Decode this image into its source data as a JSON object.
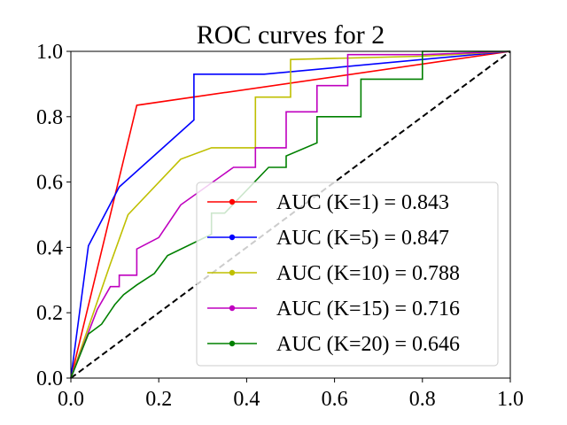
{
  "chart_data": {
    "type": "line",
    "title": "ROC curves for 2",
    "xlabel": "",
    "ylabel": "",
    "xlim": [
      0,
      1
    ],
    "ylim": [
      0,
      1
    ],
    "xticks": [
      "0.0",
      "0.2",
      "0.4",
      "0.6",
      "0.8",
      "1.0"
    ],
    "yticks": [
      "0.0",
      "0.2",
      "0.4",
      "0.6",
      "0.8",
      "1.0"
    ],
    "grid": false,
    "legend_position": "lower-right",
    "reference_line": {
      "x": [
        0,
        1
      ],
      "y": [
        0,
        1
      ],
      "color": "#000000",
      "style": "dashed"
    },
    "series": [
      {
        "name": "AUC (K=1) = 0.843",
        "color": "#ff0000",
        "x": [
          0.0,
          0.15,
          1.0
        ],
        "y": [
          0.0,
          0.835,
          1.0
        ]
      },
      {
        "name": "AUC (K=5) = 0.847",
        "color": "#0000ff",
        "x": [
          0.0,
          0.04,
          0.11,
          0.28,
          0.28,
          0.44,
          1.0
        ],
        "y": [
          0.0,
          0.405,
          0.585,
          0.79,
          0.93,
          0.93,
          1.0
        ]
      },
      {
        "name": "AUC (K=10) = 0.788",
        "color": "#bfbf00",
        "x": [
          0.0,
          0.09,
          0.13,
          0.25,
          0.32,
          0.42,
          0.42,
          0.5,
          0.5,
          0.8,
          1.0
        ],
        "y": [
          0.0,
          0.35,
          0.5,
          0.67,
          0.705,
          0.705,
          0.86,
          0.86,
          0.975,
          0.985,
          1.0
        ]
      },
      {
        "name": "AUC (K=15) = 0.716",
        "color": "#bf00bf",
        "x": [
          0.0,
          0.06,
          0.09,
          0.11,
          0.11,
          0.15,
          0.15,
          0.2,
          0.25,
          0.37,
          0.42,
          0.42,
          0.49,
          0.49,
          0.56,
          0.56,
          0.63,
          0.63,
          0.8,
          1.0
        ],
        "y": [
          0.0,
          0.21,
          0.28,
          0.28,
          0.315,
          0.315,
          0.395,
          0.43,
          0.53,
          0.645,
          0.645,
          0.705,
          0.705,
          0.815,
          0.815,
          0.895,
          0.895,
          0.99,
          0.99,
          1.0
        ]
      },
      {
        "name": "AUC (K=20) = 0.646",
        "color": "#008000",
        "x": [
          0.0,
          0.04,
          0.07,
          0.1,
          0.12,
          0.15,
          0.19,
          0.22,
          0.32,
          0.32,
          0.35,
          0.45,
          0.49,
          0.49,
          0.56,
          0.56,
          0.66,
          0.66,
          0.8,
          0.8,
          1.0
        ],
        "y": [
          0.0,
          0.135,
          0.165,
          0.225,
          0.255,
          0.285,
          0.32,
          0.375,
          0.44,
          0.505,
          0.505,
          0.645,
          0.645,
          0.68,
          0.72,
          0.8,
          0.8,
          0.915,
          0.915,
          1.0,
          1.0
        ]
      }
    ]
  }
}
